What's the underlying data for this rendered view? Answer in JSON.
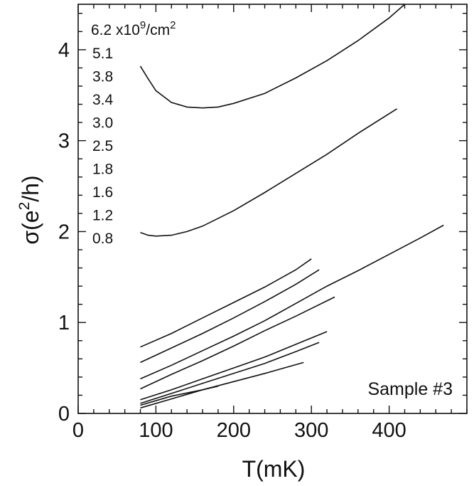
{
  "chart_data": {
    "type": "line",
    "title": "",
    "xlabel": "T(mK)",
    "ylabel_parts": {
      "pre": "σ(e",
      "sup": "2",
      "post": "/h)"
    },
    "xlim": [
      0,
      500
    ],
    "ylim": [
      0,
      4.5
    ],
    "x_ticks": [
      0,
      100,
      200,
      300,
      400
    ],
    "y_ticks": [
      0,
      1,
      2,
      3,
      4
    ],
    "x_minor_step": 20,
    "y_minor_step": 0.2,
    "annotation": "Sample #3",
    "legend": {
      "header": {
        "value": "6.2 x10",
        "exp": "9",
        "unit": "/cm",
        "unit_exp": "2"
      },
      "labels": [
        "5.1",
        "3.8",
        "3.4",
        "3.0",
        "2.5",
        "1.8",
        "1.6",
        "1.2",
        "0.8"
      ]
    },
    "series": [
      {
        "x": [
          80,
          90,
          100,
          120,
          140,
          160,
          180,
          200,
          240,
          280,
          320,
          360,
          400,
          420
        ],
        "y": [
          3.82,
          3.68,
          3.55,
          3.42,
          3.37,
          3.36,
          3.37,
          3.41,
          3.52,
          3.69,
          3.88,
          4.1,
          4.35,
          4.5
        ]
      },
      {
        "x": [
          80,
          90,
          100,
          120,
          140,
          160,
          200,
          240,
          280,
          320,
          360,
          410
        ],
        "y": [
          1.99,
          1.96,
          1.95,
          1.96,
          2.0,
          2.06,
          2.23,
          2.43,
          2.64,
          2.85,
          3.08,
          3.35
        ]
      },
      {
        "x": [
          80,
          120,
          160,
          200,
          240,
          280,
          320,
          360,
          400,
          440,
          470
        ],
        "y": [
          0.38,
          0.53,
          0.69,
          0.85,
          1.02,
          1.21,
          1.4,
          1.57,
          1.75,
          1.93,
          2.07
        ]
      },
      {
        "x": [
          80,
          120,
          160,
          200,
          240,
          280,
          300
        ],
        "y": [
          0.73,
          0.88,
          1.05,
          1.22,
          1.39,
          1.58,
          1.7
        ]
      },
      {
        "x": [
          80,
          120,
          160,
          200,
          240,
          280,
          310
        ],
        "y": [
          0.56,
          0.72,
          0.88,
          1.05,
          1.23,
          1.42,
          1.58
        ]
      },
      {
        "x": [
          80,
          120,
          160,
          200,
          240,
          280,
          330
        ],
        "y": [
          0.27,
          0.43,
          0.58,
          0.74,
          0.91,
          1.07,
          1.28
        ]
      },
      {
        "x": [
          80,
          120,
          160,
          200,
          240,
          280,
          320
        ],
        "y": [
          0.15,
          0.26,
          0.38,
          0.5,
          0.62,
          0.76,
          0.9
        ]
      },
      {
        "x": [
          80,
          120,
          160,
          200,
          240,
          280,
          310
        ],
        "y": [
          0.11,
          0.22,
          0.33,
          0.44,
          0.55,
          0.68,
          0.78
        ]
      },
      {
        "x": [
          80,
          120,
          160,
          200,
          240,
          290
        ],
        "y": [
          0.06,
          0.16,
          0.26,
          0.35,
          0.44,
          0.56
        ]
      },
      {
        "x": [
          80,
          120,
          160,
          180
        ],
        "y": [
          0.09,
          0.19,
          0.26,
          0.3
        ]
      }
    ]
  }
}
